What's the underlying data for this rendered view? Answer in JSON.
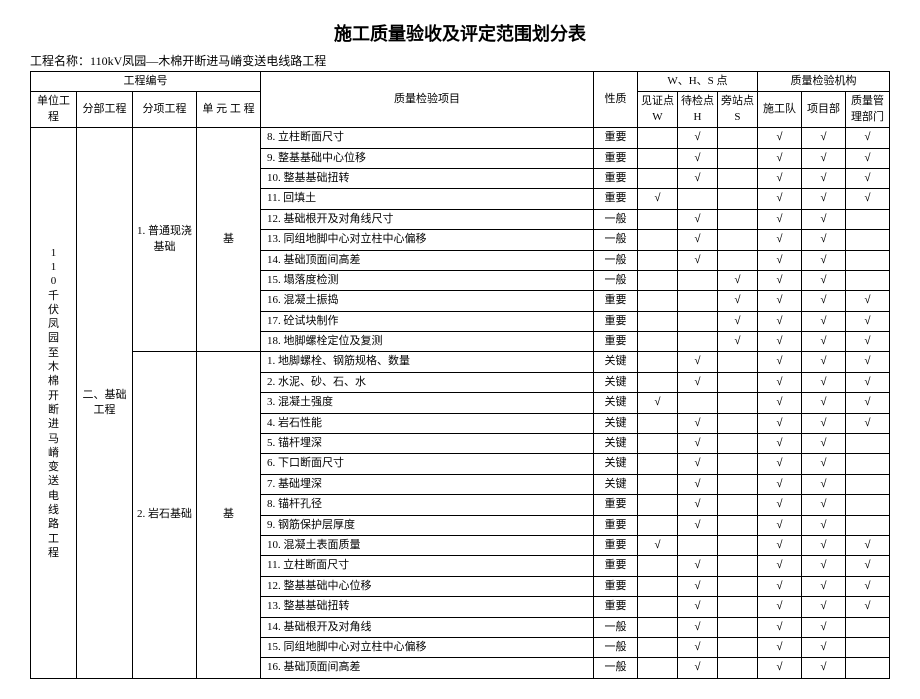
{
  "title": "施工质量验收及评定范围划分表",
  "project_label": "工程名称：",
  "project_name": "110kV凤园—木棉开断进马嵴变送电线路工程",
  "code_label": "工程编号",
  "headers": {
    "unit": "单位工程",
    "section": "分部工程",
    "sub": "分项工程",
    "ue": "单 元 工 程",
    "item": "质量检验项目",
    "nature": "性质",
    "whs": "W、H、S 点",
    "w": "见证点 W",
    "h": "待检点 H",
    "s": "旁站点 S",
    "org": "质量检验机构",
    "o1": "施工队",
    "o2": "项目部",
    "o3": "质量管理部门"
  },
  "unit_project": "110千伏凤园至木棉开断进马嵴变送电线路工程",
  "section_name": "二、基础工程",
  "sub1": "1. 普通现浇基础",
  "sub2": "2. 岩石基础",
  "ue_name": "基",
  "check": "√",
  "rows1": [
    {
      "no": "8",
      "item": "立柱断面尺寸",
      "nature": "重要",
      "w": "",
      "h": "√",
      "s": "",
      "o1": "√",
      "o2": "√",
      "o3": "√"
    },
    {
      "no": "9",
      "item": "整基基础中心位移",
      "nature": "重要",
      "w": "",
      "h": "√",
      "s": "",
      "o1": "√",
      "o2": "√",
      "o3": "√"
    },
    {
      "no": "10",
      "item": "整基基础扭转",
      "nature": "重要",
      "w": "",
      "h": "√",
      "s": "",
      "o1": "√",
      "o2": "√",
      "o3": "√"
    },
    {
      "no": "11",
      "item": "回填土",
      "nature": "重要",
      "w": "√",
      "h": "",
      "s": "",
      "o1": "√",
      "o2": "√",
      "o3": "√"
    },
    {
      "no": "12",
      "item": "基础根开及对角线尺寸",
      "nature": "一般",
      "w": "",
      "h": "√",
      "s": "",
      "o1": "√",
      "o2": "√",
      "o3": ""
    },
    {
      "no": "13",
      "item": "同组地脚中心对立柱中心偏移",
      "nature": "一般",
      "w": "",
      "h": "√",
      "s": "",
      "o1": "√",
      "o2": "√",
      "o3": ""
    },
    {
      "no": "14",
      "item": "基础顶面间高差",
      "nature": "一般",
      "w": "",
      "h": "√",
      "s": "",
      "o1": "√",
      "o2": "√",
      "o3": ""
    },
    {
      "no": "15",
      "item": "塌落度检测",
      "nature": "一般",
      "w": "",
      "h": "",
      "s": "√",
      "o1": "√",
      "o2": "√",
      "o3": ""
    },
    {
      "no": "16",
      "item": "混凝土振捣",
      "nature": "重要",
      "w": "",
      "h": "",
      "s": "√",
      "o1": "√",
      "o2": "√",
      "o3": "√"
    },
    {
      "no": "17",
      "item": "砼试块制作",
      "nature": "重要",
      "w": "",
      "h": "",
      "s": "√",
      "o1": "√",
      "o2": "√",
      "o3": "√"
    },
    {
      "no": "18",
      "item": "地脚螺栓定位及复测",
      "nature": "重要",
      "w": "",
      "h": "",
      "s": "√",
      "o1": "√",
      "o2": "√",
      "o3": "√"
    }
  ],
  "rows2": [
    {
      "no": "1",
      "item": "地脚螺栓、钢筋规格、数量",
      "nature": "关键",
      "w": "",
      "h": "√",
      "s": "",
      "o1": "√",
      "o2": "√",
      "o3": "√"
    },
    {
      "no": "2",
      "item": "水泥、砂、石、水",
      "nature": "关键",
      "w": "",
      "h": "√",
      "s": "",
      "o1": "√",
      "o2": "√",
      "o3": "√"
    },
    {
      "no": "3",
      "item": "混凝土强度",
      "nature": "关键",
      "w": "√",
      "h": "",
      "s": "",
      "o1": "√",
      "o2": "√",
      "o3": "√"
    },
    {
      "no": "4",
      "item": "岩石性能",
      "nature": "关键",
      "w": "",
      "h": "√",
      "s": "",
      "o1": "√",
      "o2": "√",
      "o3": "√"
    },
    {
      "no": "5",
      "item": "锚杆埋深",
      "nature": "关键",
      "w": "",
      "h": "√",
      "s": "",
      "o1": "√",
      "o2": "√",
      "o3": ""
    },
    {
      "no": "6",
      "item": "下口断面尺寸",
      "nature": "关键",
      "w": "",
      "h": "√",
      "s": "",
      "o1": "√",
      "o2": "√",
      "o3": ""
    },
    {
      "no": "7",
      "item": "基础埋深",
      "nature": "关键",
      "w": "",
      "h": "√",
      "s": "",
      "o1": "√",
      "o2": "√",
      "o3": ""
    },
    {
      "no": "8",
      "item": "锚杆孔径",
      "nature": "重要",
      "w": "",
      "h": "√",
      "s": "",
      "o1": "√",
      "o2": "√",
      "o3": ""
    },
    {
      "no": "9",
      "item": "钢筋保护层厚度",
      "nature": "重要",
      "w": "",
      "h": "√",
      "s": "",
      "o1": "√",
      "o2": "√",
      "o3": ""
    },
    {
      "no": "10",
      "item": "混凝土表面质量",
      "nature": "重要",
      "w": "√",
      "h": "",
      "s": "",
      "o1": "√",
      "o2": "√",
      "o3": "√"
    },
    {
      "no": "11",
      "item": "立柱断面尺寸",
      "nature": "重要",
      "w": "",
      "h": "√",
      "s": "",
      "o1": "√",
      "o2": "√",
      "o3": "√"
    },
    {
      "no": "12",
      "item": "整基基础中心位移",
      "nature": "重要",
      "w": "",
      "h": "√",
      "s": "",
      "o1": "√",
      "o2": "√",
      "o3": "√"
    },
    {
      "no": "13",
      "item": "整基基础扭转",
      "nature": "重要",
      "w": "",
      "h": "√",
      "s": "",
      "o1": "√",
      "o2": "√",
      "o3": "√"
    },
    {
      "no": "14",
      "item": "基础根开及对角线",
      "nature": "一般",
      "w": "",
      "h": "√",
      "s": "",
      "o1": "√",
      "o2": "√",
      "o3": ""
    },
    {
      "no": "15",
      "item": "同组地脚中心对立柱中心偏移",
      "nature": "一般",
      "w": "",
      "h": "√",
      "s": "",
      "o1": "√",
      "o2": "√",
      "o3": ""
    },
    {
      "no": "16",
      "item": "基础顶面间高差",
      "nature": "一般",
      "w": "",
      "h": "√",
      "s": "",
      "o1": "√",
      "o2": "√",
      "o3": ""
    }
  ]
}
